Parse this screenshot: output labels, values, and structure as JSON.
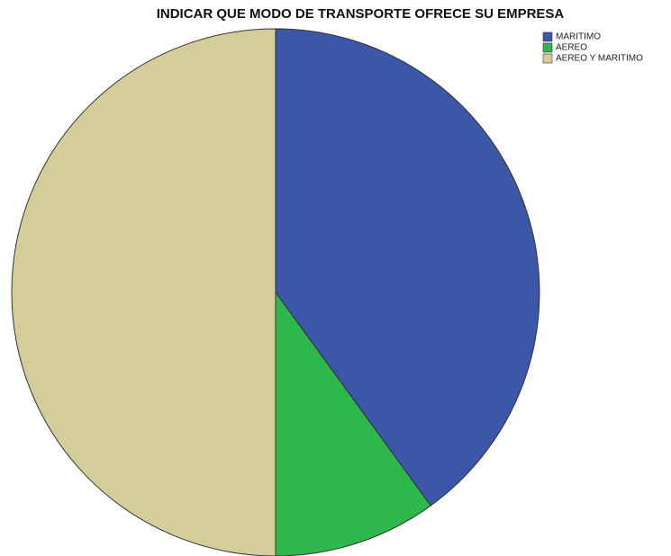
{
  "chart_data": {
    "type": "pie",
    "title": "INDICAR QUE MODO DE TRANSPORTE OFRECE SU EMPRESA",
    "categories": [
      "MARITIMO",
      "AEREO",
      "AEREO Y MARITIMO"
    ],
    "values": [
      40,
      10,
      50
    ],
    "colors": [
      "#3d57a8",
      "#2eb84b",
      "#d4cd99"
    ],
    "legend": "upper right"
  }
}
